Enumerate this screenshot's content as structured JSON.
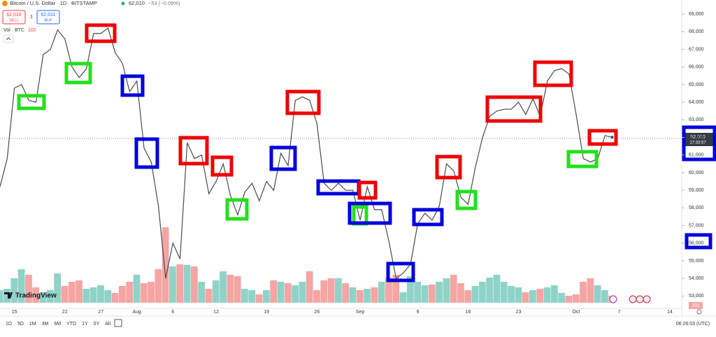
{
  "header": {
    "symbol": "Bitcoin / U.S. Dollar · 1D · BITSTAMP",
    "price": "62,010",
    "change": "−53 (−0.09%)",
    "sell_price": "62,010",
    "sell_label": "SELL",
    "quantity": "1",
    "buy_price": "62,011",
    "buy_label": "BUY",
    "volume_label": "Vol · BTC",
    "volume_value": "102"
  },
  "chart_data": {
    "type": "line",
    "categories": [
      null,
      null,
      "15",
      null,
      null,
      null,
      null,
      null,
      null,
      "22",
      null,
      null,
      null,
      null,
      "27",
      null,
      null,
      null,
      null,
      "Aug",
      null,
      null,
      null,
      null,
      "6",
      null,
      null,
      null,
      null,
      null,
      "12",
      null,
      null,
      null,
      null,
      null,
      null,
      "19",
      null,
      null,
      null,
      null,
      null,
      null,
      "26",
      null,
      null,
      null,
      null,
      null,
      "Sep",
      null,
      null,
      null,
      null,
      null,
      null,
      null,
      "9",
      null,
      null,
      null,
      null,
      null,
      null,
      "16",
      null,
      null,
      null,
      null,
      null,
      null,
      "23",
      null,
      null,
      null,
      null,
      null,
      null,
      null,
      "Oct",
      null,
      null,
      null,
      null,
      null,
      "7",
      null,
      null,
      null,
      null,
      null,
      null,
      "14",
      null
    ],
    "series": [
      {
        "color": "#4a4a4a",
        "values": [
          59200,
          60800,
          64800,
          65000,
          64100,
          64000,
          66700,
          67000,
          68100,
          67600,
          66000,
          65400,
          65900,
          67900,
          67900,
          68200,
          66800,
          66200,
          64600,
          65200,
          61400,
          60600,
          58100,
          54000,
          56000,
          55100,
          61700,
          60800,
          61000,
          58800,
          59500,
          60500,
          58700,
          57600,
          58900,
          59400,
          58400,
          59500,
          59000,
          61100,
          60400,
          64100,
          64300,
          64100,
          62800,
          59400,
          59000,
          59400,
          59000,
          59000,
          57300,
          59200,
          57900,
          57900,
          56100,
          54000,
          54300,
          54800,
          57100,
          57700,
          57300,
          58100,
          60500,
          60100,
          58600,
          58200,
          60300,
          62000,
          63200,
          63500,
          63600,
          63600,
          64000,
          63300,
          64200,
          63200,
          65200,
          65800,
          65900,
          65600,
          63300,
          60800,
          60600,
          60800,
          62100,
          62010,
          null,
          null,
          null,
          null,
          null,
          null,
          null,
          null,
          null
        ]
      }
    ],
    "volume": {
      "up_color": "#8fd3c8",
      "down_color": "#f5a5a3",
      "lim": [
        0,
        4410
      ],
      "values": [
        180,
        200,
        350,
        480,
        400,
        220,
        150,
        180,
        420,
        240,
        300,
        320,
        200,
        220,
        250,
        180,
        140,
        240,
        300,
        400,
        280,
        300,
        480,
        1080,
        520,
        550,
        540,
        520,
        300,
        200,
        320,
        450,
        400,
        380,
        200,
        180,
        120,
        180,
        320,
        300,
        280,
        250,
        300,
        450,
        180,
        320,
        350,
        350,
        280,
        220,
        180,
        200,
        220,
        300,
        360,
        400,
        150,
        380,
        300,
        250,
        260,
        300,
        350,
        400,
        280,
        180,
        240,
        300,
        360,
        400,
        300,
        240,
        220,
        150,
        180,
        200,
        220,
        250,
        140,
        100,
        120,
        300,
        350,
        250,
        180,
        102,
        null,
        null,
        null,
        null,
        null,
        null,
        null,
        null,
        null
      ]
    },
    "ylim": [
      52300,
      69800
    ],
    "yticks": [
      {
        "value": 53000,
        "label": "53,000"
      },
      {
        "value": 54000,
        "label": "54,000"
      },
      {
        "value": 55000,
        "label": "55,000"
      },
      {
        "value": 56000,
        "label": "56,000"
      },
      {
        "value": 57000,
        "label": "57,000"
      },
      {
        "value": 58000,
        "label": "58,000"
      },
      {
        "value": 59000,
        "label": "59,000"
      },
      {
        "value": 60000,
        "label": "60,000"
      },
      {
        "value": 61000,
        "label": "61,000"
      },
      {
        "value": 62000,
        "label": "62,000"
      },
      {
        "value": 63000,
        "label": "63,000"
      },
      {
        "value": 64000,
        "label": "64,000"
      },
      {
        "value": 65000,
        "label": "65,000"
      },
      {
        "value": 66000,
        "label": "66,000"
      },
      {
        "value": 67000,
        "label": "67,000"
      },
      {
        "value": 68000,
        "label": "68,000"
      },
      {
        "value": 69000,
        "label": "69,000"
      }
    ],
    "grid": false
  },
  "price_tag": {
    "price": "62,010",
    "countdown": "17:33:57"
  },
  "volume_tag": "102",
  "logo": "TradingView",
  "toolbar": {
    "ranges": [
      "1D",
      "5D",
      "1M",
      "3M",
      "6M",
      "YTD",
      "1Y",
      "5Y",
      "All"
    ],
    "clock": "06:26:03 (UTC)"
  }
}
